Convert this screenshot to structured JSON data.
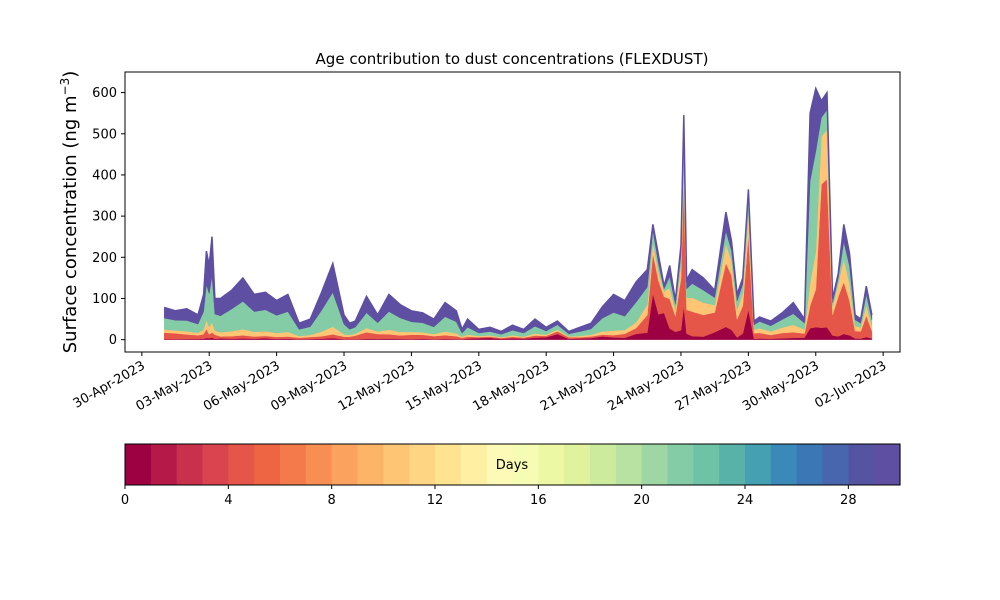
{
  "chart_data": {
    "type": "area",
    "title": "Age contribution to dust concentrations (FLEXDUST)",
    "ylabel": "Surface concentration (ng m",
    "ylabel_sup": "−3",
    "ylabel_close": ")",
    "xlabel": "",
    "ylim": [
      -30,
      650
    ],
    "yticks": [
      0,
      100,
      200,
      300,
      400,
      500,
      600
    ],
    "xlim": [
      "2023-04-29T06:00",
      "2023-06-02T18:00"
    ],
    "xticks": [
      "2023-04-30",
      "2023-05-03",
      "2023-05-06",
      "2023-05-09",
      "2023-05-12",
      "2023-05-15",
      "2023-05-18",
      "2023-05-21",
      "2023-05-24",
      "2023-05-27",
      "2023-05-30",
      "2023-06-02"
    ],
    "xtick_labels": [
      "30-Apr-2023",
      "03-May-2023",
      "06-May-2023",
      "09-May-2023",
      "12-May-2023",
      "15-May-2023",
      "18-May-2023",
      "21-May-2023",
      "24-May-2023",
      "27-May-2023",
      "30-May-2023",
      "02-Jun-2023"
    ],
    "grid": false,
    "total_curve": {
      "x": [
        "2023-05-01T00:00",
        "2023-05-01T12:00",
        "2023-05-02T00:00",
        "2023-05-02T12:00",
        "2023-05-02T18:00",
        "2023-05-02T21:00",
        "2023-05-03T00:00",
        "2023-05-03T03:00",
        "2023-05-03T06:00",
        "2023-05-03T12:00",
        "2023-05-04T00:00",
        "2023-05-04T12:00",
        "2023-05-05T00:00",
        "2023-05-05T12:00",
        "2023-05-06T00:00",
        "2023-05-06T12:00",
        "2023-05-07T00:00",
        "2023-05-07T12:00",
        "2023-05-08T00:00",
        "2023-05-08T12:00",
        "2023-05-09T00:00",
        "2023-05-09T06:00",
        "2023-05-09T12:00",
        "2023-05-10T00:00",
        "2023-05-10T12:00",
        "2023-05-11T00:00",
        "2023-05-11T12:00",
        "2023-05-12T00:00",
        "2023-05-12T12:00",
        "2023-05-13T00:00",
        "2023-05-13T12:00",
        "2023-05-14T00:00",
        "2023-05-14T06:00",
        "2023-05-14T12:00",
        "2023-05-15T00:00",
        "2023-05-15T12:00",
        "2023-05-16T00:00",
        "2023-05-16T12:00",
        "2023-05-17T00:00",
        "2023-05-17T12:00",
        "2023-05-18T00:00",
        "2023-05-18T12:00",
        "2023-05-19T00:00",
        "2023-05-19T12:00",
        "2023-05-20T00:00",
        "2023-05-20T12:00",
        "2023-05-21T00:00",
        "2023-05-21T12:00",
        "2023-05-22T00:00",
        "2023-05-22T12:00",
        "2023-05-22T18:00",
        "2023-05-23T00:00",
        "2023-05-23T06:00",
        "2023-05-23T12:00",
        "2023-05-23T18:00",
        "2023-05-24T00:00",
        "2023-05-24T03:00",
        "2023-05-24T06:00",
        "2023-05-24T12:00",
        "2023-05-25T00:00",
        "2023-05-25T12:00",
        "2023-05-26T00:00",
        "2023-05-26T06:00",
        "2023-05-26T12:00",
        "2023-05-26T18:00",
        "2023-05-27T00:00",
        "2023-05-27T06:00",
        "2023-05-27T12:00",
        "2023-05-28T00:00",
        "2023-05-28T12:00",
        "2023-05-29T00:00",
        "2023-05-29T12:00",
        "2023-05-29T18:00",
        "2023-05-30T00:00",
        "2023-05-30T06:00",
        "2023-05-30T12:00",
        "2023-05-30T18:00",
        "2023-05-31T00:00",
        "2023-05-31T06:00",
        "2023-05-31T12:00",
        "2023-05-31T18:00",
        "2023-06-01T00:00",
        "2023-06-01T06:00",
        "2023-06-01T12:00"
      ],
      "y": [
        78,
        70,
        75,
        60,
        110,
        215,
        180,
        250,
        100,
        100,
        120,
        150,
        110,
        115,
        95,
        110,
        40,
        50,
        115,
        185,
        60,
        40,
        45,
        105,
        60,
        110,
        85,
        70,
        65,
        50,
        90,
        70,
        25,
        50,
        25,
        30,
        20,
        35,
        25,
        50,
        30,
        45,
        20,
        30,
        40,
        80,
        110,
        95,
        140,
        170,
        280,
        205,
        130,
        180,
        95,
        230,
        545,
        145,
        170,
        150,
        120,
        310,
        240,
        110,
        150,
        365,
        45,
        55,
        45,
        65,
        90,
        50,
        550,
        610,
        580,
        600,
        100,
        160,
        280,
        210,
        60,
        50,
        130,
        60
      ]
    },
    "colorbar": {
      "label": "Days",
      "vmin": 0,
      "vmax": 30,
      "ticks": [
        0,
        4,
        8,
        12,
        16,
        20,
        24,
        28
      ],
      "colors": [
        "#9e0142",
        "#b41947",
        "#c8304c",
        "#d9444e",
        "#e55649",
        "#ee6544",
        "#f47a4b",
        "#f88e53",
        "#fba25e",
        "#fdb466",
        "#fdc574",
        "#fed582",
        "#fee391",
        "#feefa3",
        "#fdf9b6",
        "#f7fcb4",
        "#edf8a5",
        "#e0f29d",
        "#cdeb9d",
        "#b8e2a1",
        "#9ed7a4",
        "#83cca5",
        "#6ec2a5",
        "#58b2a8",
        "#45a1b1",
        "#3a8ab9",
        "#3c77b5",
        "#4766ad",
        "#5454a3",
        "#5e4fa2"
      ]
    },
    "age_layers": [
      {
        "frac": [
          0.02,
          0.02,
          0.02,
          0.03,
          0.02,
          0.02,
          0.02,
          0.02,
          0.02,
          0.03,
          0.02,
          0.02,
          0.02,
          0.03,
          0.02,
          0.02,
          0.02,
          0.03,
          0.02,
          0.02,
          0.02,
          0.03,
          0.02,
          0.02,
          0.03,
          0.02,
          0.02,
          0.02,
          0.03,
          0.02,
          0.02,
          0.02,
          0.03,
          0.05,
          0.15,
          0.15,
          0.1,
          0.1,
          0.1,
          0.1,
          0.2,
          0.3,
          0.1,
          0.1,
          0.1,
          0.1,
          0.05,
          0.05,
          0.1,
          0.1,
          0.4,
          0.3,
          0.5,
          0.15,
          0.2,
          0.1,
          0.15,
          0.1,
          0.05,
          0.05,
          0.15,
          0.1,
          0.1,
          0.05,
          0.1,
          0.2,
          0.05,
          0.05,
          0.05,
          0.05,
          0.05,
          0.1,
          0.05,
          0.05,
          0.05,
          0.05,
          0.1,
          0.05,
          0.05,
          0.05,
          0.05,
          0.05,
          0.05,
          0.05
        ]
      },
      {
        "frac": [
          0.2,
          0.2,
          0.15,
          0.15,
          0.1,
          0.1,
          0.05,
          0.05,
          0.1,
          0.05,
          0.05,
          0.05,
          0.05,
          0.05,
          0.05,
          0.05,
          0.1,
          0.1,
          0.05,
          0.05,
          0.1,
          0.15,
          0.2,
          0.15,
          0.2,
          0.1,
          0.1,
          0.15,
          0.15,
          0.15,
          0.1,
          0.1,
          0.15,
          0.1,
          0.1,
          0.1,
          0.1,
          0.1,
          0.1,
          0.1,
          0.1,
          0.15,
          0.2,
          0.1,
          0.1,
          0.05,
          0.05,
          0.1,
          0.1,
          0.25,
          0.35,
          0.4,
          0.3,
          0.4,
          0.4,
          0.55,
          0.55,
          0.4,
          0.35,
          0.35,
          0.4,
          0.5,
          0.55,
          0.4,
          0.45,
          0.5,
          0.3,
          0.25,
          0.2,
          0.2,
          0.15,
          0.2,
          0.1,
          0.15,
          0.6,
          0.6,
          0.5,
          0.6,
          0.45,
          0.4,
          0.3,
          0.35,
          0.4,
          0.3
        ]
      },
      {
        "frac": [
          0.1,
          0.1,
          0.1,
          0.1,
          0.1,
          0.1,
          0.1,
          0.1,
          0.1,
          0.1,
          0.1,
          0.1,
          0.1,
          0.1,
          0.1,
          0.1,
          0.1,
          0.1,
          0.1,
          0.1,
          0.1,
          0.1,
          0.1,
          0.1,
          0.1,
          0.1,
          0.1,
          0.1,
          0.1,
          0.1,
          0.1,
          0.1,
          0.1,
          0.1,
          0.1,
          0.1,
          0.1,
          0.1,
          0.1,
          0.1,
          0.1,
          0.1,
          0.1,
          0.1,
          0.1,
          0.1,
          0.1,
          0.1,
          0.1,
          0.15,
          0.1,
          0.1,
          0.1,
          0.15,
          0.15,
          0.15,
          0.12,
          0.2,
          0.2,
          0.2,
          0.15,
          0.15,
          0.15,
          0.2,
          0.2,
          0.15,
          0.2,
          0.2,
          0.2,
          0.2,
          0.2,
          0.2,
          0.1,
          0.15,
          0.2,
          0.2,
          0.2,
          0.2,
          0.2,
          0.2,
          0.2,
          0.2,
          0.2,
          0.2
        ]
      },
      {
        "frac": [
          0.35,
          0.35,
          0.35,
          0.35,
          0.4,
          0.4,
          0.45,
          0.45,
          0.4,
          0.4,
          0.45,
          0.45,
          0.45,
          0.45,
          0.45,
          0.45,
          0.4,
          0.4,
          0.45,
          0.45,
          0.4,
          0.35,
          0.35,
          0.35,
          0.35,
          0.4,
          0.4,
          0.35,
          0.35,
          0.35,
          0.4,
          0.4,
          0.35,
          0.35,
          0.3,
          0.3,
          0.35,
          0.35,
          0.35,
          0.35,
          0.3,
          0.25,
          0.3,
          0.35,
          0.35,
          0.4,
          0.4,
          0.35,
          0.35,
          0.25,
          0.1,
          0.1,
          0.05,
          0.15,
          0.15,
          0.1,
          0.1,
          0.15,
          0.2,
          0.2,
          0.15,
          0.1,
          0.1,
          0.2,
          0.15,
          0.1,
          0.25,
          0.3,
          0.3,
          0.3,
          0.3,
          0.3,
          0.45,
          0.4,
          0.08,
          0.08,
          0.1,
          0.08,
          0.15,
          0.2,
          0.25,
          0.2,
          0.2,
          0.25
        ]
      },
      {
        "frac": [
          0.33,
          0.33,
          0.38,
          0.37,
          0.38,
          0.38,
          0.38,
          0.38,
          0.38,
          0.42,
          0.38,
          0.38,
          0.38,
          0.37,
          0.38,
          0.38,
          0.38,
          0.37,
          0.38,
          0.38,
          0.38,
          0.37,
          0.33,
          0.38,
          0.32,
          0.38,
          0.38,
          0.38,
          0.37,
          0.38,
          0.38,
          0.38,
          0.37,
          0.4,
          0.35,
          0.35,
          0.35,
          0.35,
          0.35,
          0.35,
          0.3,
          0.2,
          0.3,
          0.35,
          0.35,
          0.35,
          0.4,
          0.4,
          0.35,
          0.25,
          0.05,
          0.1,
          0.05,
          0.15,
          0.1,
          0.1,
          0.08,
          0.15,
          0.2,
          0.2,
          0.15,
          0.15,
          0.1,
          0.15,
          0.1,
          0.05,
          0.2,
          0.2,
          0.25,
          0.25,
          0.3,
          0.2,
          0.3,
          0.25,
          0.07,
          0.07,
          0.1,
          0.07,
          0.15,
          0.15,
          0.2,
          0.2,
          0.15,
          0.2
        ]
      }
    ],
    "age_layer_colors": [
      "#9e0142",
      "#e55649",
      "#fdc574",
      "#83cca5",
      "#5e4fa2"
    ]
  }
}
